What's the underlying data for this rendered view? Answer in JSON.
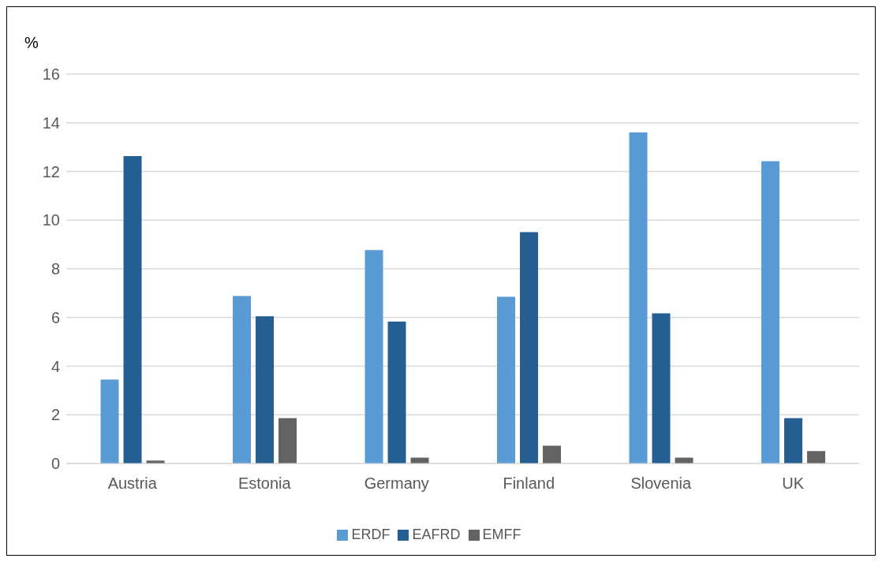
{
  "chart_data": {
    "type": "bar",
    "ylabel": "%",
    "categories": [
      "Austria",
      "Estonia",
      "Germany",
      "Finland",
      "Slovenia",
      "UK"
    ],
    "series": [
      {
        "name": "ERDF",
        "color": "#5b9bd5",
        "values": [
          3.45,
          6.88,
          8.77,
          6.85,
          13.6,
          12.42
        ]
      },
      {
        "name": "EAFRD",
        "color": "#255e91",
        "values": [
          12.63,
          6.05,
          5.83,
          9.51,
          6.17,
          1.86
        ]
      },
      {
        "name": "EMFF",
        "color": "#636363",
        "values": [
          0.12,
          1.86,
          0.24,
          0.73,
          0.24,
          0.51
        ]
      }
    ],
    "ylim": [
      0,
      16
    ],
    "yticks": [
      0,
      2,
      4,
      6,
      8,
      10,
      12,
      14,
      16
    ],
    "grid": "y",
    "legend": "bottom"
  }
}
